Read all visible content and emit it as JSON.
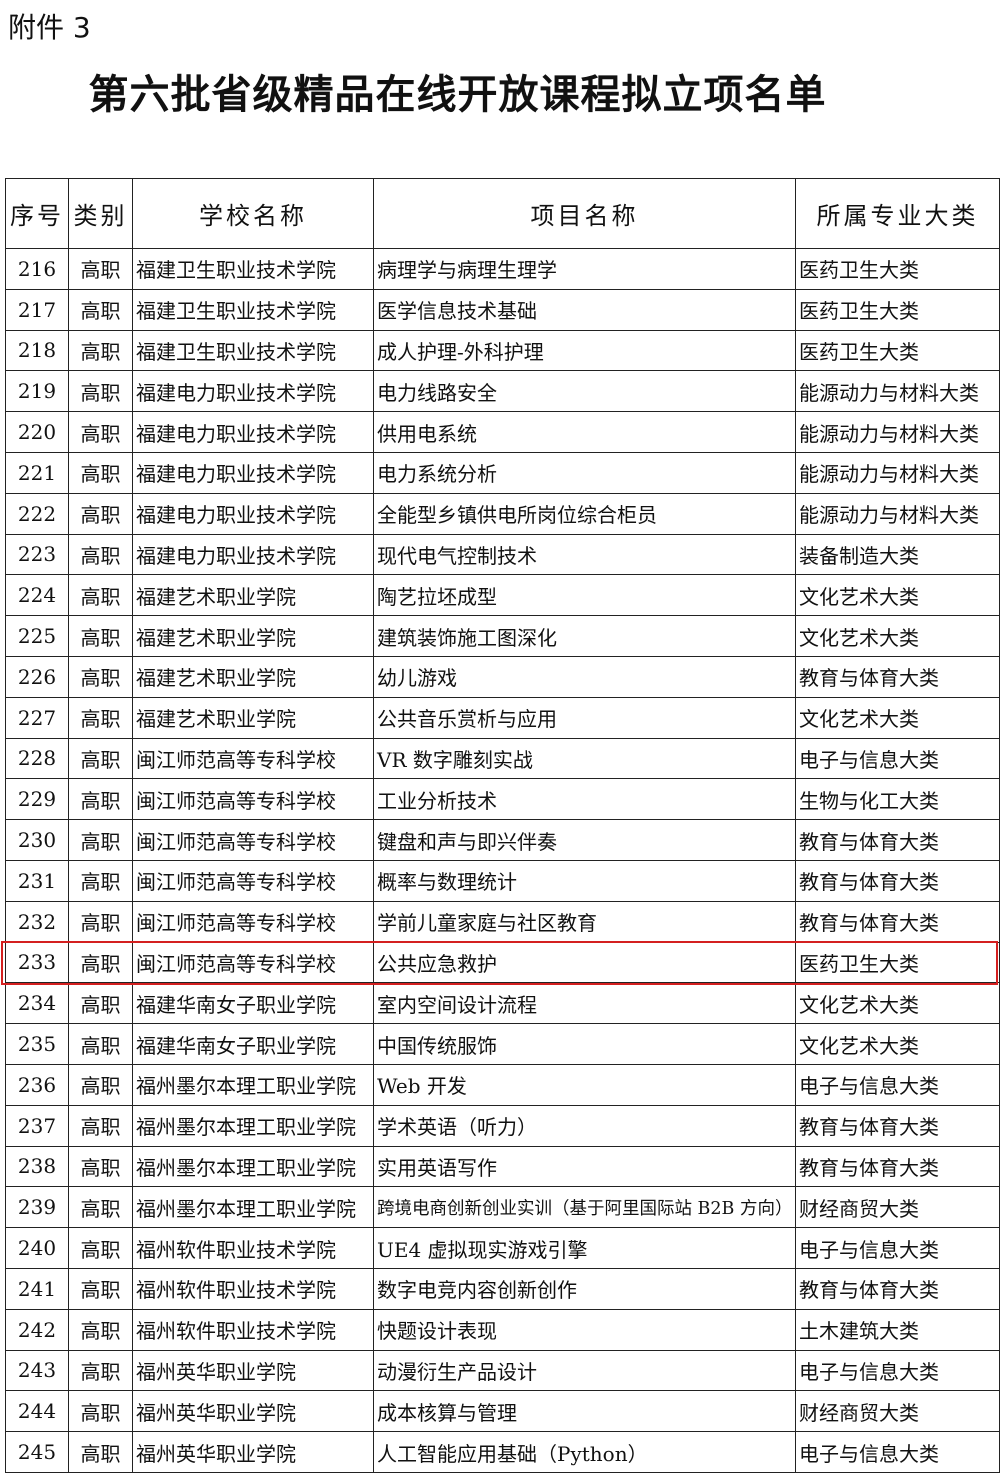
{
  "header": {
    "attachment": "附件 3",
    "title": "第六批省级精品在线开放课程拟立项名单"
  },
  "table": {
    "columns": [
      "序号",
      "类别",
      "学校名称",
      "项目名称",
      "所属专业大类"
    ],
    "rows": [
      [
        "216",
        "高职",
        "福建卫生职业技术学院",
        "病理学与病理生理学",
        "医药卫生大类"
      ],
      [
        "217",
        "高职",
        "福建卫生职业技术学院",
        "医学信息技术基础",
        "医药卫生大类"
      ],
      [
        "218",
        "高职",
        "福建卫生职业技术学院",
        "成人护理-外科护理",
        "医药卫生大类"
      ],
      [
        "219",
        "高职",
        "福建电力职业技术学院",
        "电力线路安全",
        "能源动力与材料大类"
      ],
      [
        "220",
        "高职",
        "福建电力职业技术学院",
        "供用电系统",
        "能源动力与材料大类"
      ],
      [
        "221",
        "高职",
        "福建电力职业技术学院",
        "电力系统分析",
        "能源动力与材料大类"
      ],
      [
        "222",
        "高职",
        "福建电力职业技术学院",
        "全能型乡镇供电所岗位综合柜员",
        "能源动力与材料大类"
      ],
      [
        "223",
        "高职",
        "福建电力职业技术学院",
        "现代电气控制技术",
        "装备制造大类"
      ],
      [
        "224",
        "高职",
        "福建艺术职业学院",
        "陶艺拉坯成型",
        "文化艺术大类"
      ],
      [
        "225",
        "高职",
        "福建艺术职业学院",
        "建筑装饰施工图深化",
        "文化艺术大类"
      ],
      [
        "226",
        "高职",
        "福建艺术职业学院",
        "幼儿游戏",
        "教育与体育大类"
      ],
      [
        "227",
        "高职",
        "福建艺术职业学院",
        "公共音乐赏析与应用",
        "文化艺术大类"
      ],
      [
        "228",
        "高职",
        "闽江师范高等专科学校",
        "VR 数字雕刻实战",
        "电子与信息大类"
      ],
      [
        "229",
        "高职",
        "闽江师范高等专科学校",
        "工业分析技术",
        "生物与化工大类"
      ],
      [
        "230",
        "高职",
        "闽江师范高等专科学校",
        "键盘和声与即兴伴奏",
        "教育与体育大类"
      ],
      [
        "231",
        "高职",
        "闽江师范高等专科学校",
        "概率与数理统计",
        "教育与体育大类"
      ],
      [
        "232",
        "高职",
        "闽江师范高等专科学校",
        "学前儿童家庭与社区教育",
        "教育与体育大类"
      ],
      [
        "233",
        "高职",
        "闽江师范高等专科学校",
        "公共应急救护",
        "医药卫生大类"
      ],
      [
        "234",
        "高职",
        "福建华南女子职业学院",
        "室内空间设计流程",
        "文化艺术大类"
      ],
      [
        "235",
        "高职",
        "福建华南女子职业学院",
        "中国传统服饰",
        "文化艺术大类"
      ],
      [
        "236",
        "高职",
        "福州墨尔本理工职业学院",
        "Web 开发",
        "电子与信息大类"
      ],
      [
        "237",
        "高职",
        "福州墨尔本理工职业学院",
        "学术英语（听力）",
        "教育与体育大类"
      ],
      [
        "238",
        "高职",
        "福州墨尔本理工职业学院",
        "实用英语写作",
        "教育与体育大类"
      ],
      [
        "239",
        "高职",
        "福州墨尔本理工职业学院",
        "跨境电商创新创业实训（基于阿里国际站 B2B 方向）",
        "财经商贸大类"
      ],
      [
        "240",
        "高职",
        "福州软件职业技术学院",
        "UE4 虚拟现实游戏引擎",
        "电子与信息大类"
      ],
      [
        "241",
        "高职",
        "福州软件职业技术学院",
        "数字电竞内容创新创作",
        "教育与体育大类"
      ],
      [
        "242",
        "高职",
        "福州软件职业技术学院",
        "快题设计表现",
        "土木建筑大类"
      ],
      [
        "243",
        "高职",
        "福州英华职业学院",
        "动漫衍生产品设计",
        "电子与信息大类"
      ],
      [
        "244",
        "高职",
        "福州英华职业学院",
        "成本核算与管理",
        "财经商贸大类"
      ],
      [
        "245",
        "高职",
        "福州英华职业学院",
        "人工智能应用基础（Python）",
        "电子与信息大类"
      ]
    ]
  }
}
